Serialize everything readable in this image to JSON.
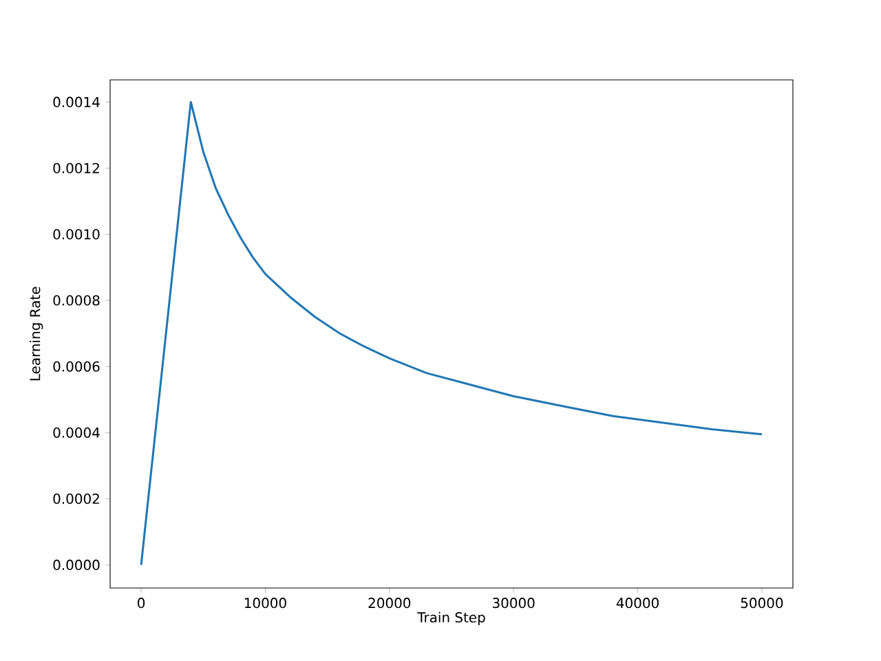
{
  "chart_data": {
    "type": "line",
    "xlabel": "Train Step",
    "ylabel": "Learning Rate",
    "x": [
      0,
      4000,
      5000,
      6000,
      7000,
      8000,
      9000,
      10000,
      12000,
      14000,
      16000,
      18000,
      20000,
      23000,
      26000,
      30000,
      34000,
      38000,
      42000,
      46000,
      50000
    ],
    "series": [
      {
        "color": "#1f77b4",
        "values": [
          0.0,
          0.0014,
          0.00125,
          0.00114,
          0.00106,
          0.00099,
          0.00093,
          0.00088,
          0.00081,
          0.00075,
          0.0007,
          0.00066,
          0.000625,
          0.00058,
          0.00055,
          0.00051,
          0.00048,
          0.00045,
          0.00043,
          0.00041,
          0.000395
        ]
      }
    ],
    "xlim": [
      -2500,
      52500
    ],
    "ylim": [
      -7e-05,
      0.001467
    ],
    "xticks": [
      0,
      10000,
      20000,
      30000,
      40000,
      50000
    ],
    "yticks": [
      {
        "value": 0,
        "label": "0.0000"
      },
      {
        "value": 0.0002,
        "label": "0.0002"
      },
      {
        "value": 0.0004,
        "label": "0.0004"
      },
      {
        "value": 0.0006,
        "label": "0.0006"
      },
      {
        "value": 0.0008,
        "label": "0.0008"
      },
      {
        "value": 0.001,
        "label": "0.0010"
      },
      {
        "value": 0.0012,
        "label": "0.0012"
      },
      {
        "value": 0.0014,
        "label": "0.0014"
      }
    ],
    "marker": "none",
    "line_style": "solid"
  }
}
